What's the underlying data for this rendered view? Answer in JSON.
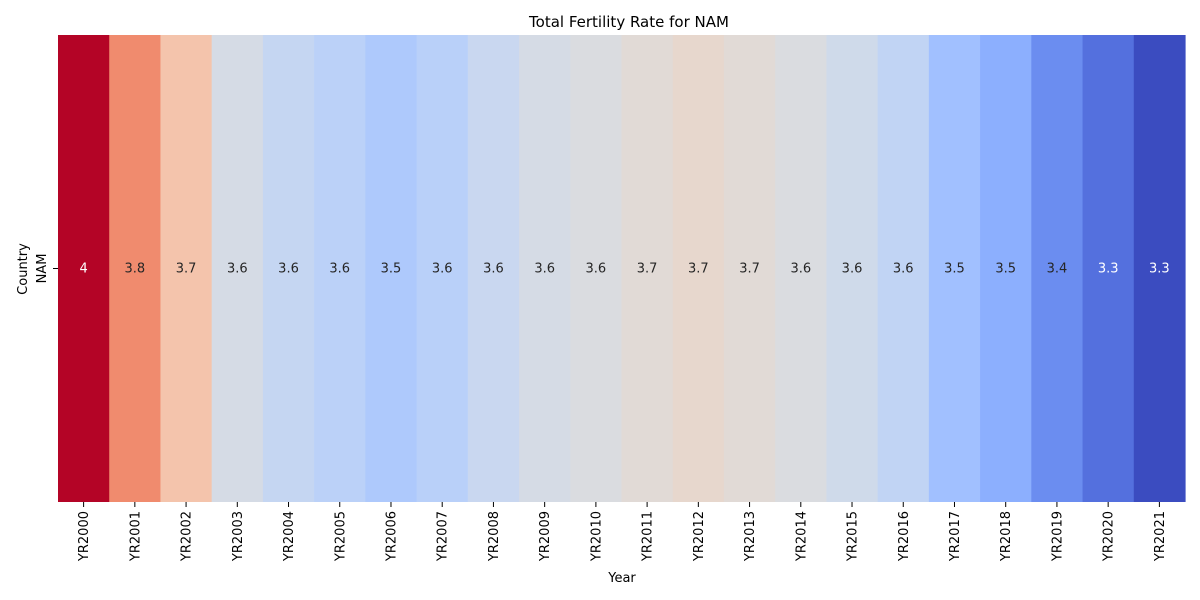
{
  "chart_data": {
    "type": "heatmap",
    "title": "Total Fertility Rate for NAM",
    "xlabel": "Year",
    "ylabel": "Country",
    "y_categories": [
      "NAM"
    ],
    "x_categories": [
      "YR2000",
      "YR2001",
      "YR2002",
      "YR2003",
      "YR2004",
      "YR2005",
      "YR2006",
      "YR2007",
      "YR2008",
      "YR2009",
      "YR2010",
      "YR2011",
      "YR2012",
      "YR2013",
      "YR2014",
      "YR2015",
      "YR2016",
      "YR2017",
      "YR2018",
      "YR2019",
      "YR2020",
      "YR2021"
    ],
    "value_labels": [
      "4",
      "3.8",
      "3.7",
      "3.6",
      "3.6",
      "3.6",
      "3.5",
      "3.6",
      "3.6",
      "3.6",
      "3.6",
      "3.7",
      "3.7",
      "3.7",
      "3.6",
      "3.6",
      "3.6",
      "3.5",
      "3.5",
      "3.4",
      "3.3",
      "3.3"
    ],
    "cell_colors": [
      "#b40426",
      "#f08b6e",
      "#f4c4ac",
      "#d5dbe5",
      "#c5d6f2",
      "#bbd1f8",
      "#aec9fc",
      "#b9d0f9",
      "#c9d7f0",
      "#d5dbe5",
      "#dadce0",
      "#e1dad6",
      "#e7d7cd",
      "#e1dad6",
      "#dadce0",
      "#cfdaea",
      "#c1d4f4",
      "#a1c0ff",
      "#8caffe",
      "#6b8df0",
      "#5470de",
      "#3b4cc0"
    ],
    "colormap": "coolwarm",
    "grid": false,
    "legend": "none"
  }
}
